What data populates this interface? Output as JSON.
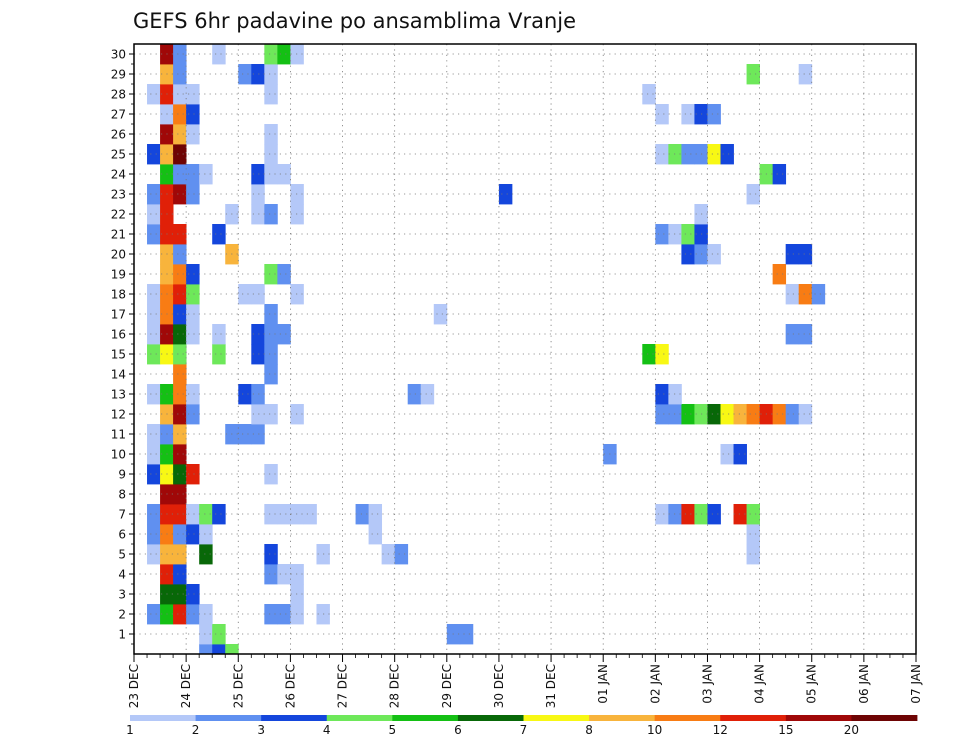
{
  "chart_data": {
    "type": "heatmap",
    "title": "GEFS 6hr padavine po ansamblima Vranje",
    "xlabel": "",
    "ylabel": "",
    "x_ticks": [
      "23 DEC",
      "24 DEC",
      "25 DEC",
      "26 DEC",
      "27 DEC",
      "28 DEC",
      "29 DEC",
      "30 DEC",
      "31 DEC",
      "01 JAN",
      "02 JAN",
      "03 JAN",
      "04 JAN",
      "05 JAN",
      "06 JAN",
      "07 JAN"
    ],
    "y_ticks": [
      1,
      2,
      3,
      4,
      5,
      6,
      7,
      8,
      9,
      10,
      11,
      12,
      13,
      14,
      15,
      16,
      17,
      18,
      19,
      20,
      21,
      22,
      23,
      24,
      25,
      26,
      27,
      28,
      29,
      30
    ],
    "xlim_days": [
      0,
      15
    ],
    "time_step_hours": 6,
    "grid": true,
    "legend": "bottom",
    "colorbar": {
      "levels": [
        "1",
        "2",
        "3",
        "4",
        "5",
        "6",
        "7",
        "8",
        "10",
        "12",
        "15",
        "20"
      ],
      "colors": [
        "#b4c8f8",
        "#6090f0",
        "#1446dc",
        "#6ee85a",
        "#14c014",
        "#086808",
        "#f8f814",
        "#f8b43c",
        "#f87c14",
        "#e02008",
        "#a00808",
        "#6e0404"
      ]
    },
    "cells": [
      {
        "m": 0,
        "t": [
          [
            5,
            2
          ],
          [
            6,
            3
          ],
          [
            7,
            4
          ]
        ]
      },
      {
        "m": 1,
        "t": [
          [
            5,
            1
          ],
          [
            6,
            4
          ],
          [
            24,
            2
          ],
          [
            25,
            2
          ]
        ]
      },
      {
        "m": 2,
        "t": [
          [
            1,
            2
          ],
          [
            2,
            5
          ],
          [
            3,
            10
          ],
          [
            4,
            2
          ],
          [
            5,
            1
          ],
          [
            10,
            2
          ],
          [
            11,
            2
          ],
          [
            12,
            1
          ],
          [
            14,
            1
          ]
        ]
      },
      {
        "m": 3,
        "t": [
          [
            2,
            6
          ],
          [
            3,
            6
          ],
          [
            4,
            3
          ],
          [
            12,
            1
          ]
        ]
      },
      {
        "m": 4,
        "t": [
          [
            2,
            10
          ],
          [
            3,
            3
          ],
          [
            10,
            2
          ],
          [
            11,
            1
          ],
          [
            12,
            1
          ]
        ]
      },
      {
        "m": 5,
        "t": [
          [
            1,
            1
          ],
          [
            2,
            8
          ],
          [
            3,
            8
          ],
          [
            5,
            6
          ],
          [
            10,
            3
          ],
          [
            14,
            1
          ],
          [
            19,
            1
          ],
          [
            20,
            2
          ],
          [
            47,
            1
          ]
        ]
      },
      {
        "m": 6,
        "t": [
          [
            1,
            2
          ],
          [
            2,
            9
          ],
          [
            3,
            2
          ],
          [
            4,
            3
          ],
          [
            5,
            1
          ],
          [
            18,
            1
          ],
          [
            47,
            1
          ]
        ]
      },
      {
        "m": 7,
        "t": [
          [
            1,
            2
          ],
          [
            2,
            10
          ],
          [
            3,
            10
          ],
          [
            4,
            1
          ],
          [
            5,
            4
          ],
          [
            6,
            3
          ],
          [
            10,
            1
          ],
          [
            11,
            1
          ],
          [
            12,
            1
          ],
          [
            13,
            1
          ],
          [
            17,
            2
          ],
          [
            18,
            1
          ],
          [
            40,
            1
          ],
          [
            41,
            2
          ],
          [
            42,
            10
          ],
          [
            43,
            4
          ],
          [
            44,
            3
          ],
          [
            46,
            10
          ],
          [
            47,
            4
          ]
        ]
      },
      {
        "m": 8,
        "t": [
          [
            2,
            11
          ],
          [
            3,
            11
          ]
        ]
      },
      {
        "m": 9,
        "t": [
          [
            1,
            3
          ],
          [
            2,
            7
          ],
          [
            3,
            6
          ],
          [
            4,
            10
          ],
          [
            10,
            1
          ]
        ]
      },
      {
        "m": 10,
        "t": [
          [
            1,
            1
          ],
          [
            2,
            5
          ],
          [
            3,
            11
          ],
          [
            36,
            2
          ],
          [
            45,
            1
          ],
          [
            46,
            3
          ]
        ]
      },
      {
        "m": 11,
        "t": [
          [
            1,
            1
          ],
          [
            2,
            2
          ],
          [
            3,
            8
          ],
          [
            7,
            2
          ],
          [
            8,
            2
          ],
          [
            9,
            2
          ]
        ]
      },
      {
        "m": 12,
        "t": [
          [
            2,
            8
          ],
          [
            3,
            11
          ],
          [
            4,
            2
          ],
          [
            9,
            1
          ],
          [
            10,
            1
          ],
          [
            12,
            1
          ],
          [
            40,
            2
          ],
          [
            41,
            2
          ],
          [
            42,
            5
          ],
          [
            43,
            4
          ],
          [
            44,
            6
          ],
          [
            45,
            7
          ],
          [
            46,
            8
          ],
          [
            47,
            9
          ],
          [
            48,
            10
          ],
          [
            49,
            9
          ],
          [
            50,
            2
          ],
          [
            51,
            1
          ]
        ]
      },
      {
        "m": 13,
        "t": [
          [
            1,
            1
          ],
          [
            2,
            5
          ],
          [
            3,
            9
          ],
          [
            4,
            1
          ],
          [
            8,
            3
          ],
          [
            9,
            2
          ],
          [
            21,
            2
          ],
          [
            22,
            1
          ],
          [
            40,
            3
          ],
          [
            41,
            1
          ]
        ]
      },
      {
        "m": 14,
        "t": [
          [
            3,
            9
          ],
          [
            10,
            2
          ]
        ]
      },
      {
        "m": 15,
        "t": [
          [
            1,
            4
          ],
          [
            2,
            7
          ],
          [
            3,
            4
          ],
          [
            6,
            4
          ],
          [
            9,
            3
          ],
          [
            10,
            2
          ],
          [
            39,
            5
          ],
          [
            40,
            7
          ]
        ]
      },
      {
        "m": 16,
        "t": [
          [
            1,
            1
          ],
          [
            2,
            11
          ],
          [
            3,
            6
          ],
          [
            4,
            1
          ],
          [
            6,
            1
          ],
          [
            9,
            3
          ],
          [
            10,
            2
          ],
          [
            11,
            2
          ],
          [
            50,
            2
          ],
          [
            51,
            2
          ]
        ]
      },
      {
        "m": 17,
        "t": [
          [
            1,
            1
          ],
          [
            2,
            9
          ],
          [
            3,
            3
          ],
          [
            4,
            1
          ],
          [
            10,
            2
          ],
          [
            23,
            1
          ]
        ]
      },
      {
        "m": 18,
        "t": [
          [
            1,
            1
          ],
          [
            2,
            9
          ],
          [
            3,
            10
          ],
          [
            4,
            4
          ],
          [
            8,
            1
          ],
          [
            9,
            1
          ],
          [
            12,
            1
          ],
          [
            50,
            1
          ],
          [
            51,
            9
          ],
          [
            52,
            2
          ]
        ]
      },
      {
        "m": 19,
        "t": [
          [
            2,
            8
          ],
          [
            3,
            9
          ],
          [
            4,
            3
          ],
          [
            10,
            4
          ],
          [
            11,
            2
          ],
          [
            49,
            9
          ]
        ]
      },
      {
        "m": 20,
        "t": [
          [
            2,
            8
          ],
          [
            3,
            2
          ],
          [
            7,
            8
          ],
          [
            42,
            3
          ],
          [
            43,
            2
          ],
          [
            44,
            1
          ],
          [
            50,
            3
          ],
          [
            51,
            3
          ]
        ]
      },
      {
        "m": 21,
        "t": [
          [
            1,
            2
          ],
          [
            2,
            10
          ],
          [
            3,
            10
          ],
          [
            6,
            3
          ],
          [
            40,
            2
          ],
          [
            41,
            1
          ],
          [
            42,
            4
          ],
          [
            43,
            3
          ]
        ]
      },
      {
        "m": 22,
        "t": [
          [
            1,
            1
          ],
          [
            2,
            10
          ],
          [
            7,
            1
          ],
          [
            9,
            1
          ],
          [
            10,
            2
          ],
          [
            12,
            1
          ],
          [
            43,
            1
          ]
        ]
      },
      {
        "m": 23,
        "t": [
          [
            1,
            2
          ],
          [
            2,
            10
          ],
          [
            3,
            11
          ],
          [
            4,
            2
          ],
          [
            9,
            1
          ],
          [
            12,
            1
          ],
          [
            28,
            3
          ],
          [
            47,
            1
          ]
        ]
      },
      {
        "m": 24,
        "t": [
          [
            2,
            5
          ],
          [
            3,
            2
          ],
          [
            4,
            2
          ],
          [
            5,
            1
          ],
          [
            9,
            3
          ],
          [
            10,
            1
          ],
          [
            11,
            1
          ],
          [
            48,
            4
          ],
          [
            49,
            3
          ]
        ]
      },
      {
        "m": 25,
        "t": [
          [
            1,
            3
          ],
          [
            2,
            8
          ],
          [
            3,
            12
          ],
          [
            10,
            1
          ],
          [
            40,
            1
          ],
          [
            41,
            4
          ],
          [
            42,
            2
          ],
          [
            43,
            2
          ],
          [
            44,
            7
          ],
          [
            45,
            3
          ]
        ]
      },
      {
        "m": 26,
        "t": [
          [
            2,
            11
          ],
          [
            3,
            8
          ],
          [
            4,
            1
          ],
          [
            10,
            1
          ]
        ]
      },
      {
        "m": 27,
        "t": [
          [
            2,
            1
          ],
          [
            3,
            9
          ],
          [
            4,
            3
          ],
          [
            40,
            1
          ],
          [
            42,
            1
          ],
          [
            43,
            3
          ],
          [
            44,
            2
          ]
        ]
      },
      {
        "m": 28,
        "t": [
          [
            1,
            1
          ],
          [
            2,
            10
          ],
          [
            3,
            1
          ],
          [
            4,
            1
          ],
          [
            10,
            1
          ],
          [
            39,
            1
          ]
        ]
      },
      {
        "m": 29,
        "t": [
          [
            2,
            8
          ],
          [
            3,
            2
          ],
          [
            8,
            2
          ],
          [
            9,
            3
          ],
          [
            10,
            1
          ],
          [
            47,
            4
          ],
          [
            51,
            1
          ]
        ]
      },
      {
        "m": 30,
        "t": [
          [
            2,
            11
          ],
          [
            3,
            2
          ],
          [
            6,
            1
          ],
          [
            10,
            4
          ],
          [
            11,
            5
          ],
          [
            12,
            1
          ]
        ]
      }
    ]
  }
}
